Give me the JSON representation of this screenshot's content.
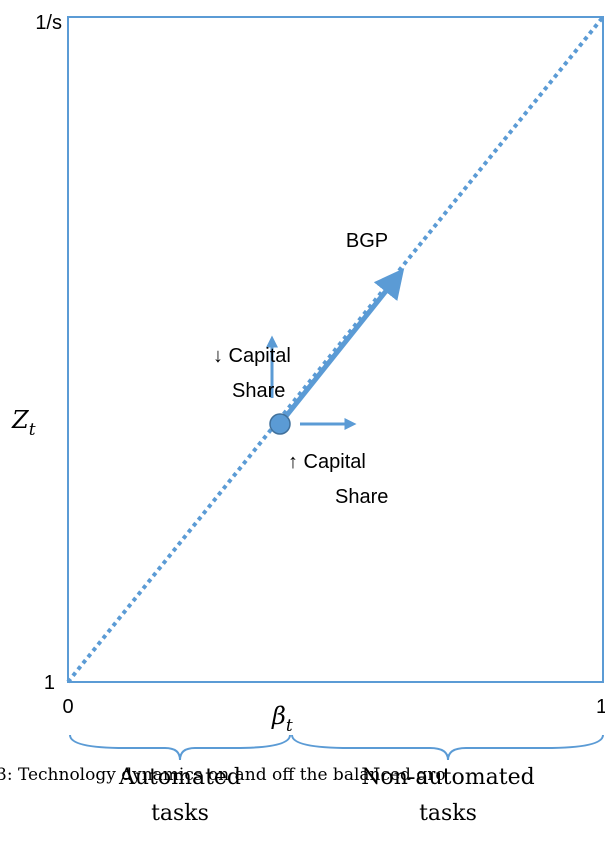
{
  "axes": {
    "y_top": "1/s",
    "y_label": "Z",
    "y_label_subscript": "t",
    "y_bottom": "1",
    "x_left": "0",
    "x_mid": "β",
    "x_mid_subscript": "t",
    "x_right": "1"
  },
  "annotations": {
    "bgp": "BGP",
    "down_share_line1": "↓ Capital",
    "down_share_line2": "Share",
    "up_share_line1": "↑ Capital",
    "up_share_line2": "Share"
  },
  "caption": "3: Technology dynamics on and off the balanced gro",
  "braces": {
    "left_line1": "Automated",
    "left_line2": "tasks",
    "right_line1": "Non-automated",
    "right_line2": "tasks"
  }
}
